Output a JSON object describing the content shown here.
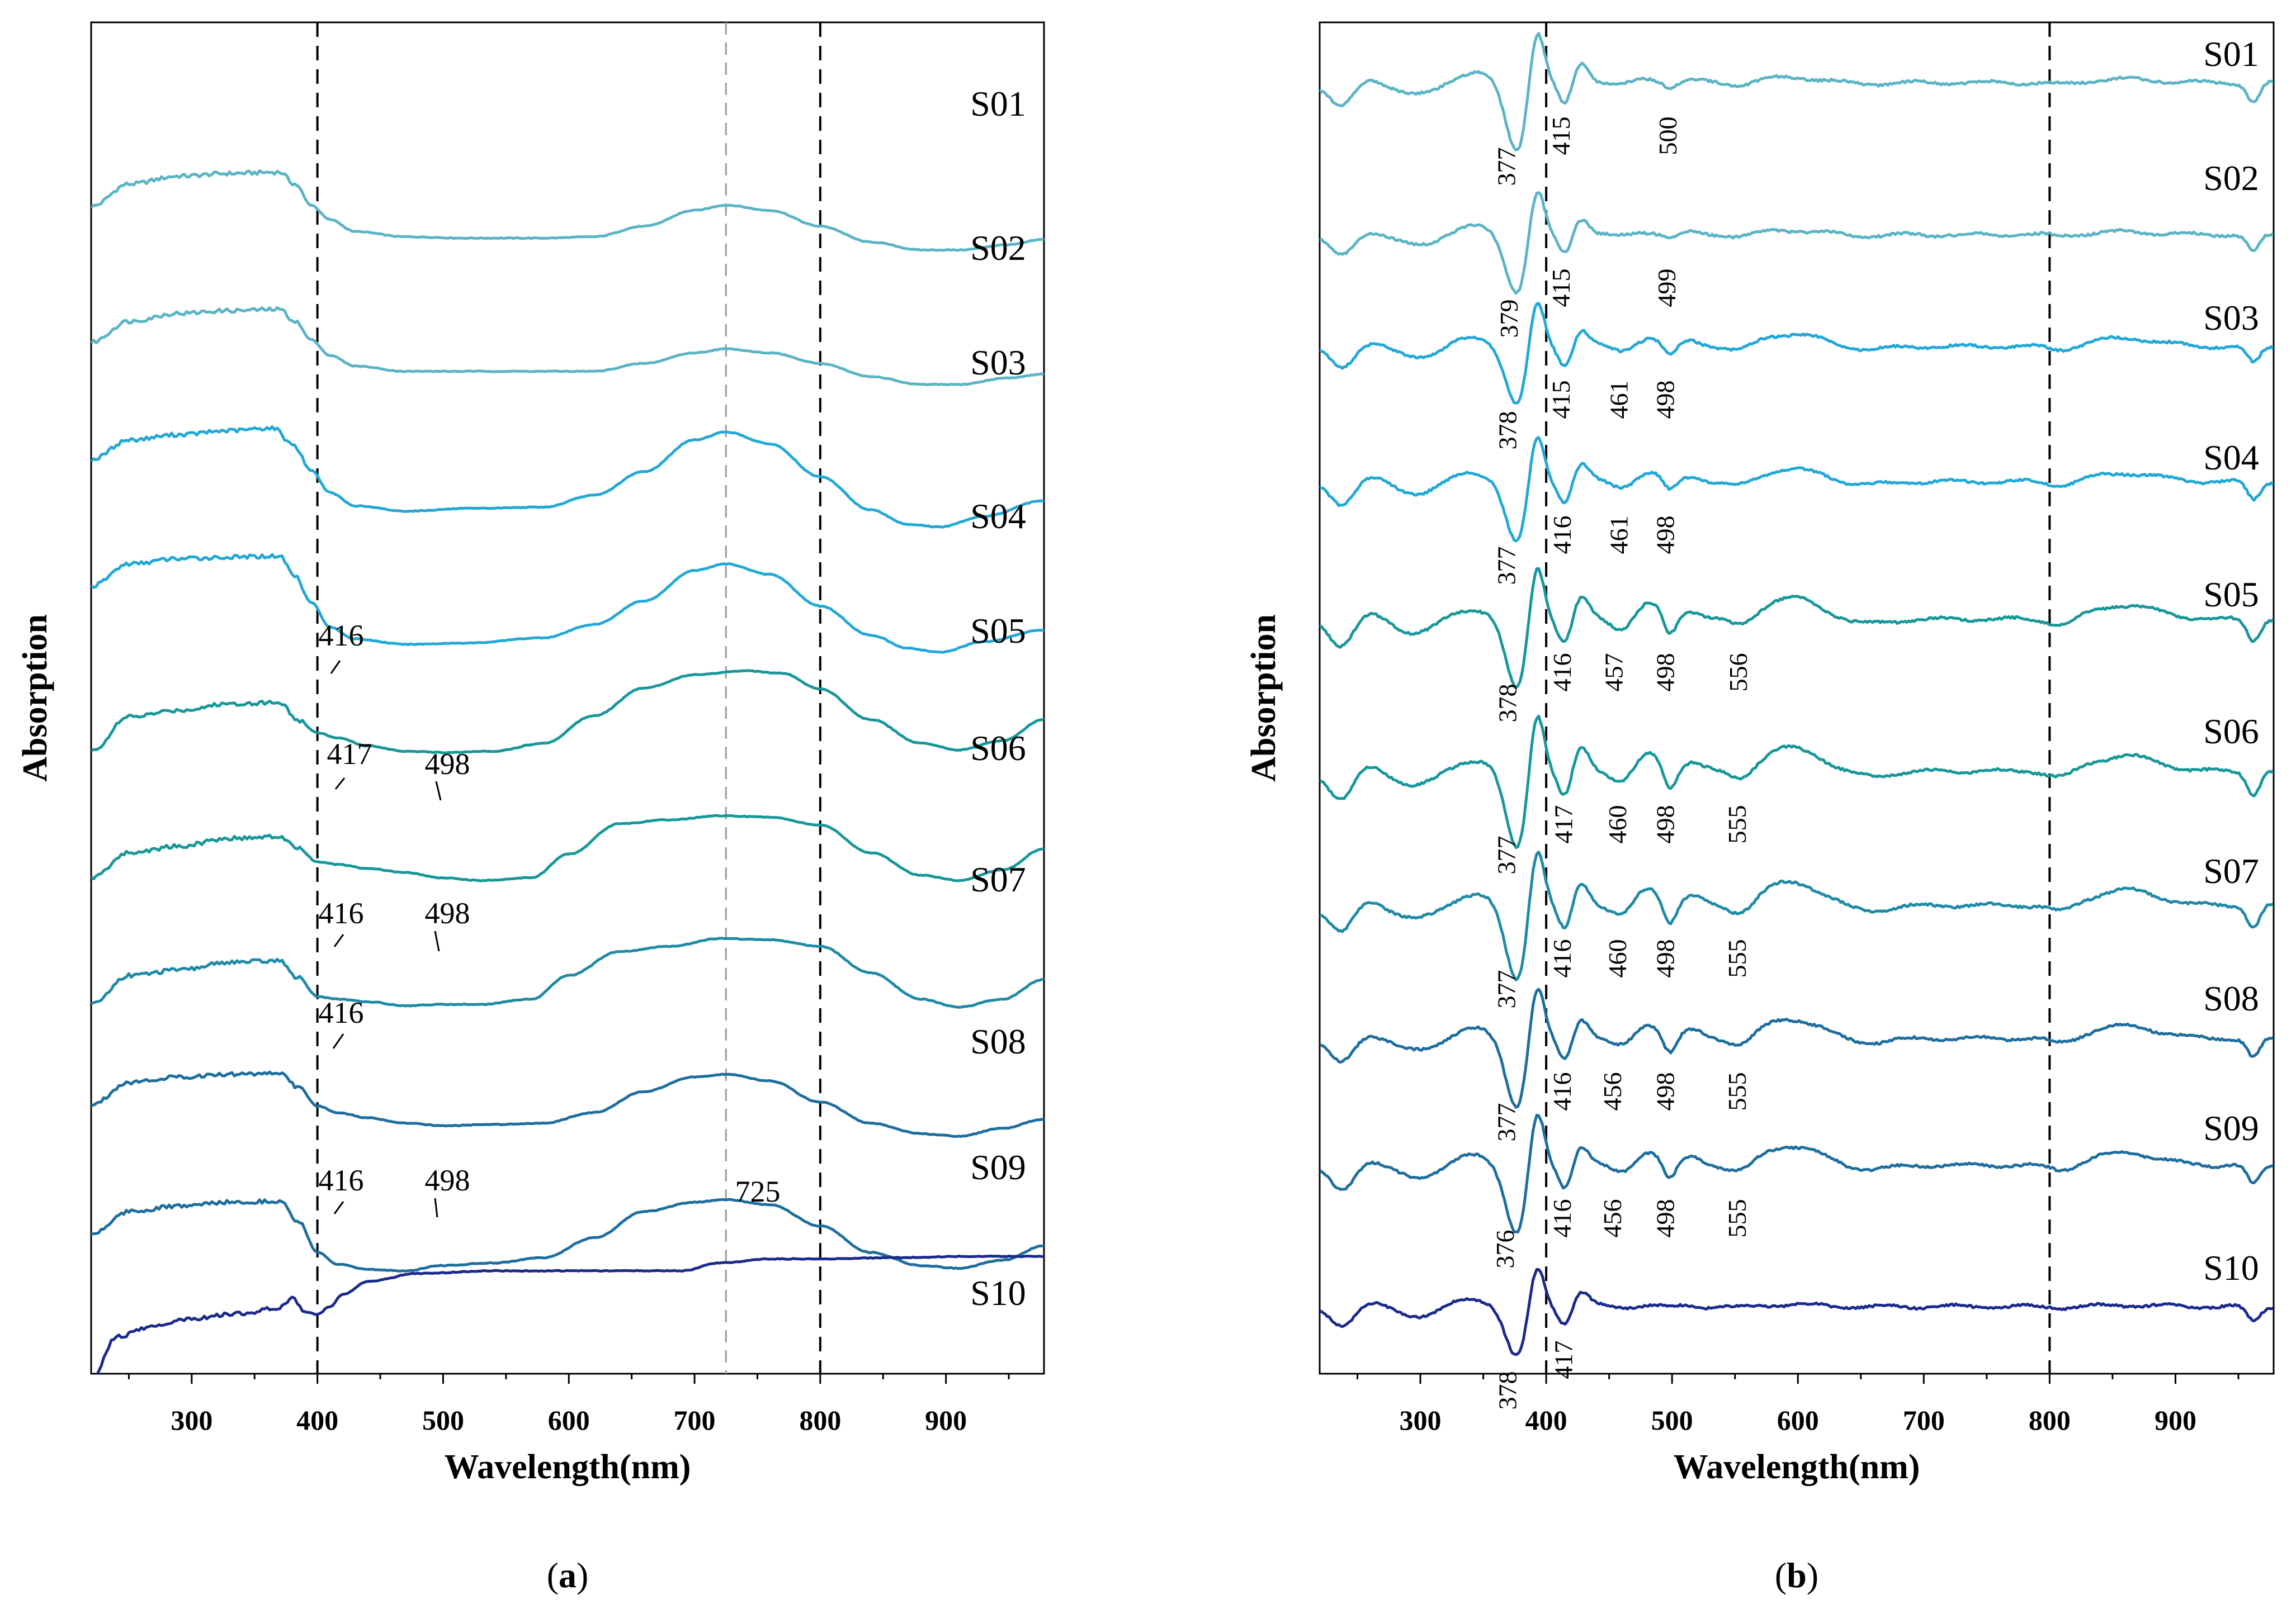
{
  "chart_data": [
    {
      "type": "line",
      "panel_label": {
        "open": "(",
        "letter": "a",
        "close": ")"
      },
      "xlabel": "Wavelength(nm)",
      "ylabel": "Absorption",
      "xlim": [
        220,
        978
      ],
      "xticks": [
        300,
        400,
        500,
        600,
        700,
        800,
        900
      ],
      "reference_lines": [
        400,
        725,
        800
      ],
      "stacked_offset_plot": true,
      "series": [
        {
          "name": "S01",
          "color": "#5ab4c5",
          "x": [
            220,
            250,
            290,
            330,
            370,
            382,
            395,
            410,
            430,
            470,
            520,
            580,
            620,
            660,
            700,
            725,
            760,
            800,
            840,
            880,
            910,
            950,
            978
          ],
          "y": [
            8.85,
            9.02,
            9.08,
            9.1,
            9.11,
            9.02,
            8.86,
            8.75,
            8.66,
            8.62,
            8.61,
            8.61,
            8.62,
            8.7,
            8.82,
            8.86,
            8.82,
            8.7,
            8.58,
            8.52,
            8.52,
            8.56,
            8.6
          ]
        },
        {
          "name": "S02",
          "color": "#5ab4c5",
          "x": [
            220,
            250,
            290,
            330,
            370,
            382,
            395,
            410,
            430,
            470,
            520,
            580,
            620,
            660,
            700,
            725,
            760,
            800,
            840,
            880,
            910,
            950,
            978
          ],
          "y": [
            7.82,
            7.98,
            8.04,
            8.06,
            8.07,
            7.98,
            7.84,
            7.72,
            7.64,
            7.6,
            7.6,
            7.6,
            7.6,
            7.66,
            7.74,
            7.77,
            7.74,
            7.66,
            7.56,
            7.5,
            7.5,
            7.55,
            7.58
          ]
        },
        {
          "name": "S03",
          "color": "#22a8d6",
          "x": [
            220,
            250,
            290,
            330,
            365,
            380,
            395,
            410,
            430,
            470,
            520,
            580,
            620,
            660,
            700,
            725,
            760,
            800,
            840,
            870,
            895,
            930,
            978
          ],
          "y": [
            6.93,
            7.08,
            7.12,
            7.15,
            7.17,
            7.05,
            6.85,
            6.68,
            6.58,
            6.54,
            6.56,
            6.57,
            6.66,
            6.84,
            7.08,
            7.14,
            7.05,
            6.8,
            6.55,
            6.44,
            6.42,
            6.5,
            6.62
          ]
        },
        {
          "name": "S04",
          "color": "#22a8d6",
          "x": [
            220,
            250,
            290,
            330,
            370,
            382,
            395,
            410,
            430,
            470,
            520,
            580,
            620,
            660,
            700,
            725,
            760,
            800,
            840,
            870,
            895,
            930,
            978
          ],
          "y": [
            5.97,
            6.14,
            6.18,
            6.19,
            6.2,
            6.05,
            5.85,
            5.66,
            5.57,
            5.53,
            5.54,
            5.58,
            5.68,
            5.86,
            6.09,
            6.14,
            6.06,
            5.82,
            5.6,
            5.5,
            5.47,
            5.55,
            5.64
          ]
        },
        {
          "name": "S05",
          "color": "#17979a",
          "x": [
            220,
            250,
            290,
            330,
            370,
            385,
            400,
            416,
            440,
            470,
            500,
            540,
            580,
            620,
            660,
            700,
            740,
            770,
            800,
            840,
            880,
            910,
            945,
            978
          ],
          "y": [
            4.72,
            4.98,
            5.03,
            5.08,
            5.09,
            4.95,
            4.86,
            4.82,
            4.76,
            4.72,
            4.71,
            4.72,
            4.78,
            4.99,
            5.2,
            5.3,
            5.33,
            5.31,
            5.19,
            4.96,
            4.78,
            4.73,
            4.8,
            4.96
          ]
        },
        {
          "name": "S06",
          "color": "#17979a",
          "x": [
            220,
            250,
            290,
            330,
            370,
            385,
            400,
            417,
            440,
            470,
            498,
            530,
            570,
            600,
            640,
            680,
            720,
            760,
            800,
            840,
            880,
            910,
            945,
            978
          ],
          "y": [
            3.76,
            3.95,
            4.0,
            4.06,
            4.07,
            3.98,
            3.88,
            3.86,
            3.83,
            3.8,
            3.76,
            3.74,
            3.76,
            3.94,
            4.17,
            4.2,
            4.23,
            4.22,
            4.16,
            3.95,
            3.78,
            3.74,
            3.82,
            3.98
          ]
        },
        {
          "name": "S07",
          "color": "#1f8aa6",
          "x": [
            220,
            250,
            290,
            330,
            370,
            385,
            400,
            416,
            440,
            470,
            498,
            530,
            570,
            600,
            640,
            680,
            720,
            760,
            800,
            840,
            880,
            910,
            945,
            978
          ],
          "y": [
            2.8,
            3.02,
            3.06,
            3.12,
            3.13,
            3.0,
            2.86,
            2.84,
            2.82,
            2.79,
            2.8,
            2.8,
            2.84,
            3.02,
            3.2,
            3.24,
            3.3,
            3.29,
            3.24,
            3.04,
            2.84,
            2.78,
            2.84,
            2.99
          ]
        },
        {
          "name": "S08",
          "color": "#1d6e9e",
          "x": [
            220,
            250,
            290,
            330,
            370,
            385,
            400,
            416,
            440,
            470,
            500,
            540,
            580,
            620,
            660,
            700,
            725,
            760,
            800,
            840,
            880,
            910,
            945,
            978
          ],
          "y": [
            2.04,
            2.21,
            2.25,
            2.27,
            2.28,
            2.17,
            2.03,
            1.98,
            1.94,
            1.9,
            1.88,
            1.89,
            1.9,
            1.98,
            2.14,
            2.25,
            2.27,
            2.22,
            2.06,
            1.9,
            1.82,
            1.8,
            1.86,
            1.93
          ]
        },
        {
          "name": "S09",
          "color": "#1d6e9e",
          "x": [
            220,
            250,
            290,
            330,
            370,
            385,
            400,
            416,
            440,
            470,
            498,
            540,
            580,
            620,
            660,
            700,
            725,
            760,
            800,
            840,
            880,
            910,
            945,
            978
          ],
          "y": [
            1.06,
            1.23,
            1.27,
            1.3,
            1.31,
            1.15,
            0.92,
            0.83,
            0.79,
            0.78,
            0.82,
            0.84,
            0.88,
            1.03,
            1.23,
            1.3,
            1.32,
            1.28,
            1.12,
            0.92,
            0.82,
            0.8,
            0.86,
            0.97
          ]
        },
        {
          "name": "S10",
          "color": "#1a2a8c",
          "x": [
            220,
            240,
            270,
            300,
            340,
            370,
            380,
            390,
            400,
            410,
            420,
            440,
            480,
            540,
            600,
            650,
            690,
            720,
            760,
            800,
            860,
            920,
            978
          ],
          "y": [
            -0.05,
            0.28,
            0.36,
            0.42,
            0.46,
            0.5,
            0.57,
            0.47,
            0.45,
            0.51,
            0.6,
            0.7,
            0.76,
            0.78,
            0.78,
            0.78,
            0.78,
            0.84,
            0.87,
            0.87,
            0.88,
            0.89,
            0.89
          ]
        }
      ],
      "annotations": [
        {
          "series": "S05",
          "x": 416,
          "text": "416"
        },
        {
          "series": "S06",
          "x": 417,
          "text": "417"
        },
        {
          "series": "S06",
          "x": 498,
          "text": "498"
        },
        {
          "series": "S07",
          "x": 416,
          "text": "416"
        },
        {
          "series": "S07",
          "x": 498,
          "text": "498"
        },
        {
          "series": "S08",
          "x": 416,
          "text": "416"
        },
        {
          "series": "S09",
          "x": 416,
          "text": "416"
        },
        {
          "series": "S09",
          "x": 498,
          "text": "498"
        },
        {
          "x": 725,
          "text": "725"
        }
      ]
    },
    {
      "type": "line",
      "panel_label": {
        "open": "(",
        "letter": "b",
        "close": ")"
      },
      "xlabel": "Wavelength(nm)",
      "ylabel": "Absorption",
      "xlim": [
        220,
        978
      ],
      "xticks": [
        300,
        400,
        500,
        600,
        700,
        800,
        900
      ],
      "reference_lines": [
        400,
        800
      ],
      "stacked_offset_plot": true,
      "series": [
        {
          "name": "S01",
          "color": "#5ab4c5"
        },
        {
          "name": "S02",
          "color": "#5ab4c5"
        },
        {
          "name": "S03",
          "color": "#22a8d6"
        },
        {
          "name": "S04",
          "color": "#22a8d6"
        },
        {
          "name": "S05",
          "color": "#17979a"
        },
        {
          "name": "S06",
          "color": "#17979a"
        },
        {
          "name": "S07",
          "color": "#1f8aa6"
        },
        {
          "name": "S08",
          "color": "#1d6e9e"
        },
        {
          "name": "S09",
          "color": "#1d6e9e"
        },
        {
          "name": "S10",
          "color": "#1a2a8c"
        }
      ],
      "peak_labels": [
        {
          "series": "S01",
          "values": [
            377,
            415,
            500
          ]
        },
        {
          "series": "S02",
          "values": [
            379,
            415,
            499
          ]
        },
        {
          "series": "S03",
          "values": [
            378,
            415,
            461,
            498
          ]
        },
        {
          "series": "S04",
          "values": [
            377,
            416,
            461,
            498
          ]
        },
        {
          "series": "S05",
          "values": [
            378,
            416,
            457,
            498,
            556
          ]
        },
        {
          "series": "S06",
          "values": [
            377,
            417,
            460,
            498,
            555
          ]
        },
        {
          "series": "S07",
          "values": [
            377,
            416,
            460,
            498,
            555
          ]
        },
        {
          "series": "S08",
          "values": [
            377,
            416,
            456,
            498,
            555
          ]
        },
        {
          "series": "S09",
          "values": [
            376,
            416,
            456,
            498,
            555
          ]
        },
        {
          "series": "S10",
          "values": [
            378,
            417
          ]
        }
      ]
    }
  ]
}
